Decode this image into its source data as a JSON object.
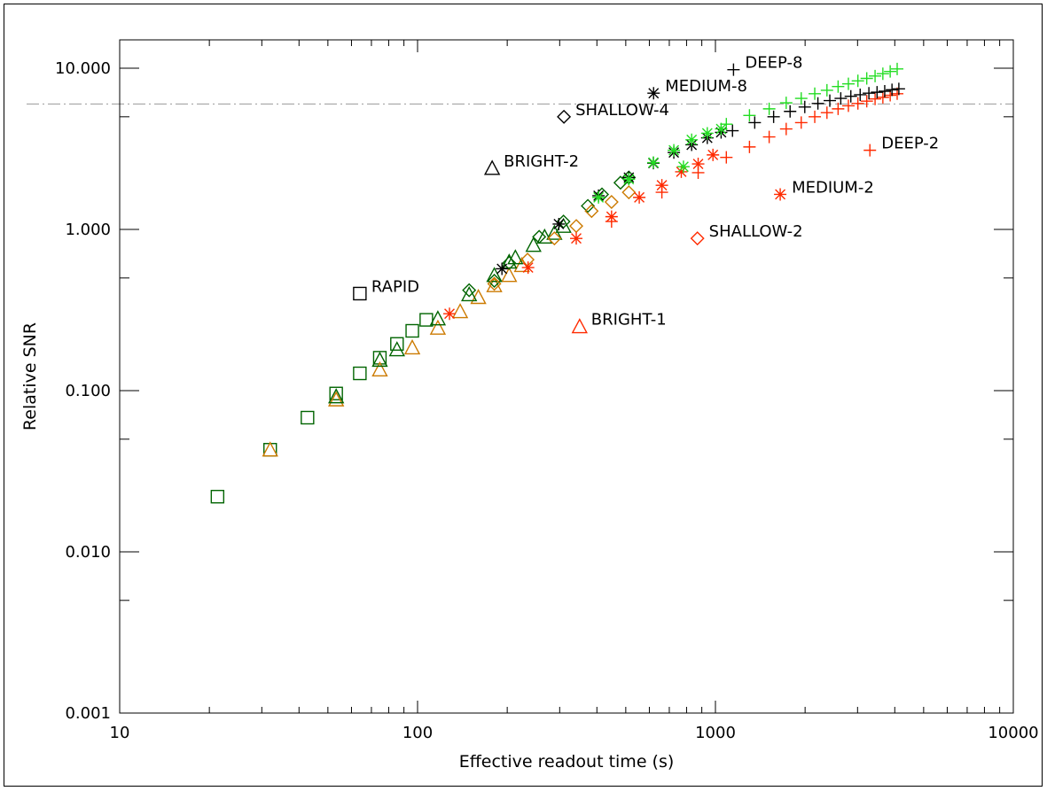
{
  "chart_data": {
    "type": "scatter",
    "xlabel": "Effective readout time (s)",
    "ylabel": "Relative SNR",
    "x_scale": "log",
    "y_scale": "log",
    "xlim": [
      10,
      10000
    ],
    "ylim": [
      0.001,
      15
    ],
    "x_ticks": [
      {
        "value": 10,
        "label": "10"
      },
      {
        "value": 100,
        "label": "100"
      },
      {
        "value": 1000,
        "label": "1000"
      },
      {
        "value": 10000,
        "label": "10000"
      }
    ],
    "y_ticks": [
      {
        "value": 0.001,
        "label": "0.001"
      },
      {
        "value": 0.01,
        "label": "0.010"
      },
      {
        "value": 0.1,
        "label": "0.100"
      },
      {
        "value": 1,
        "label": "1.000"
      },
      {
        "value": 10,
        "label": "10.000"
      }
    ],
    "reference_line": {
      "y": 6,
      "style": "dash-dot",
      "color": "#999999"
    },
    "colors": {
      "black": "#000000",
      "red": "#ff2a00",
      "green": "#22dd22",
      "dark_green": "#006400",
      "orange": "#cc7a00"
    },
    "annotations": [
      {
        "label": "DEEP-8",
        "x": 1150,
        "y": 9.8,
        "marker": "plus",
        "color": "#000000"
      },
      {
        "label": "MEDIUM-8",
        "x": 620,
        "y": 7.0,
        "marker": "asterisk",
        "color": "#000000"
      },
      {
        "label": "SHALLOW-4",
        "x": 310,
        "y": 5.0,
        "marker": "diamond",
        "color": "#000000"
      },
      {
        "label": "BRIGHT-2",
        "x": 178,
        "y": 2.4,
        "marker": "triangle",
        "color": "#000000"
      },
      {
        "label": "DEEP-2",
        "x": 3300,
        "y": 3.1,
        "marker": "plus",
        "color": "#ff2a00"
      },
      {
        "label": "MEDIUM-2",
        "x": 1650,
        "y": 1.65,
        "marker": "asterisk",
        "color": "#ff2a00"
      },
      {
        "label": "SHALLOW-2",
        "x": 870,
        "y": 0.88,
        "marker": "diamond",
        "color": "#ff2a00"
      },
      {
        "label": "RAPID",
        "x": 64,
        "y": 0.4,
        "marker": "square",
        "color": "#000000"
      },
      {
        "label": "BRIGHT-1",
        "x": 350,
        "y": 0.25,
        "marker": "triangle",
        "color": "#ff2a00"
      }
    ],
    "series": [
      {
        "marker": "square",
        "color": "#006400",
        "x": [
          21.3,
          32,
          42.7,
          53.3,
          64,
          74.7,
          85.3,
          96,
          107
        ],
        "y": [
          0.022,
          0.043,
          0.068,
          0.096,
          0.128,
          0.16,
          0.195,
          0.235,
          0.275
        ]
      },
      {
        "marker": "triangle",
        "color": "#cc7a00",
        "x": [
          32,
          53.3,
          74.7,
          96,
          117,
          139,
          160,
          181,
          203,
          224
        ],
        "y": [
          0.043,
          0.088,
          0.135,
          0.185,
          0.245,
          0.31,
          0.38,
          0.45,
          0.52,
          0.6
        ]
      },
      {
        "marker": "triangle",
        "color": "#006400",
        "x": [
          53.3,
          74.7,
          85.3,
          117,
          149,
          181,
          203,
          213,
          245,
          267,
          288,
          309
        ],
        "y": [
          0.092,
          0.155,
          0.18,
          0.28,
          0.395,
          0.52,
          0.63,
          0.67,
          0.8,
          0.9,
          0.95,
          1.05
        ]
      },
      {
        "marker": "diamond",
        "color": "#006400",
        "x": [
          149,
          181,
          203,
          256,
          309,
          373,
          416,
          480,
          512
        ],
        "y": [
          0.42,
          0.48,
          0.62,
          0.9,
          1.12,
          1.4,
          1.65,
          1.95,
          2.1
        ]
      },
      {
        "marker": "diamond",
        "color": "#cc7a00",
        "x": [
          181,
          234,
          288,
          341,
          384,
          448,
          512
        ],
        "y": [
          0.46,
          0.65,
          0.88,
          1.05,
          1.3,
          1.48,
          1.7
        ]
      },
      {
        "marker": "asterisk",
        "color": "#ff2a00",
        "x": [
          128,
          235,
          341,
          448,
          555,
          661,
          768,
          875,
          981
        ],
        "y": [
          0.3,
          0.58,
          0.88,
          1.2,
          1.58,
          1.88,
          2.28,
          2.55,
          2.9
        ]
      },
      {
        "marker": "asterisk",
        "color": "#000000",
        "x": [
          192,
          298,
          405,
          512,
          619,
          725,
          832,
          939,
          1045
        ],
        "y": [
          0.57,
          1.08,
          1.62,
          2.1,
          2.58,
          3.0,
          3.35,
          3.7,
          4.0
        ]
      },
      {
        "marker": "asterisk",
        "color": "#22dd22",
        "x": [
          405,
          512,
          619,
          725,
          781,
          832,
          939,
          1045
        ],
        "y": [
          1.58,
          2.05,
          2.6,
          3.1,
          2.45,
          3.6,
          3.95,
          4.2
        ]
      },
      {
        "marker": "plus",
        "color": "#ff2a00",
        "x": [
          448,
          661,
          875,
          1088,
          1301,
          1515,
          1728,
          1941,
          2155,
          2368,
          2581,
          2795,
          3008,
          3221,
          3435,
          3648,
          3861,
          4075
        ],
        "y": [
          1.12,
          1.7,
          2.25,
          2.8,
          3.25,
          3.75,
          4.2,
          4.6,
          5.0,
          5.3,
          5.6,
          5.85,
          6.05,
          6.25,
          6.45,
          6.6,
          6.8,
          6.95
        ]
      },
      {
        "marker": "plus",
        "color": "#000000",
        "x": [
          1141,
          1355,
          1568,
          1781,
          1995,
          2208,
          2421,
          2635,
          2848,
          3061,
          3275,
          3488,
          3701,
          3915,
          4128
        ],
        "y": [
          4.1,
          4.6,
          5.0,
          5.4,
          5.75,
          6.05,
          6.3,
          6.5,
          6.7,
          6.85,
          7.0,
          7.1,
          7.2,
          7.35,
          7.45
        ]
      },
      {
        "marker": "plus",
        "color": "#22dd22",
        "x": [
          1088,
          1301,
          1515,
          1728,
          1941,
          2155,
          2368,
          2581,
          2795,
          3008,
          3221,
          3435,
          3648,
          3861,
          4075
        ],
        "y": [
          4.5,
          5.1,
          5.6,
          6.1,
          6.5,
          6.95,
          7.3,
          7.7,
          8.0,
          8.35,
          8.65,
          8.95,
          9.25,
          9.55,
          9.9
        ]
      }
    ]
  }
}
